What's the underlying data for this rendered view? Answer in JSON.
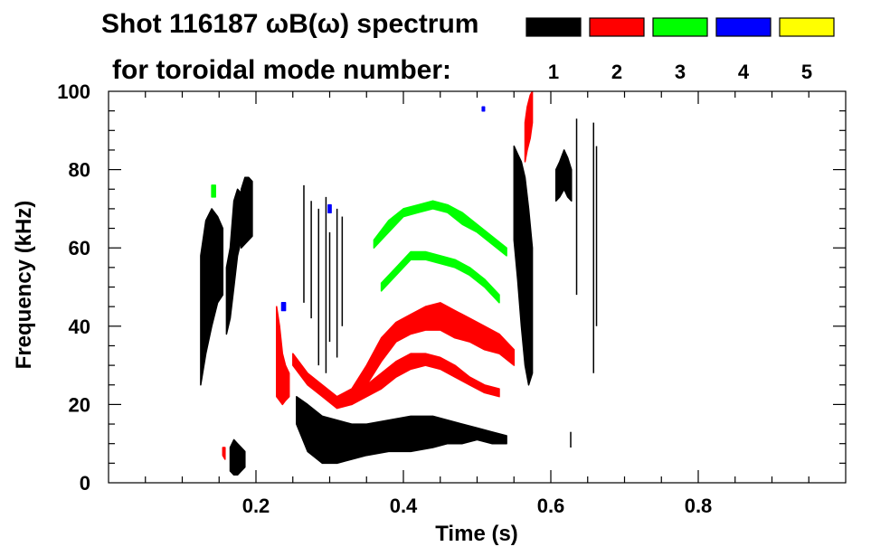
{
  "chart_data": {
    "type": "scatter",
    "title_line1": "Shot 116187 ωB(ω) spectrum",
    "title_line2": "for toroidal mode number:",
    "xlabel": "Time (s)",
    "ylabel": "Frequency (kHz)",
    "xlim": [
      0.0,
      1.0
    ],
    "ylim": [
      0,
      100
    ],
    "x_ticks": [
      0.2,
      0.4,
      0.6,
      0.8
    ],
    "x_tick_labels": [
      "0.2",
      "0.4",
      "0.6",
      "0.8"
    ],
    "y_ticks": [
      0,
      20,
      40,
      60,
      80,
      100
    ],
    "y_tick_labels": [
      "0",
      "20",
      "40",
      "60",
      "80",
      "100"
    ],
    "grid": false,
    "legend_position": "top-right",
    "legend": [
      {
        "label": "1",
        "color": "#000000"
      },
      {
        "label": "2",
        "color": "#ff0000"
      },
      {
        "label": "3",
        "color": "#00ff00"
      },
      {
        "label": "4",
        "color": "#0000ff"
      },
      {
        "label": "5",
        "color": "#ffff00"
      }
    ],
    "series": [
      {
        "mode": "1",
        "color": "#000000",
        "bands": [
          {
            "x": [
              0.125,
              0.132,
              0.14,
              0.148,
              0.155
            ],
            "low": [
              25,
              33,
              40,
              46,
              48
            ],
            "high": [
              58,
              67,
              70,
              68,
              65
            ]
          },
          {
            "x": [
              0.16,
              0.165,
              0.17,
              0.175,
              0.18
            ],
            "low": [
              38,
              42,
              50,
              58,
              62
            ],
            "high": [
              55,
              60,
              72,
              75,
              74
            ]
          },
          {
            "x": [
              0.18,
              0.185,
              0.19,
              0.195
            ],
            "low": [
              60,
              61,
              62,
              63
            ],
            "high": [
              75,
              78,
              78,
              77
            ]
          },
          {
            "x": [
              0.165,
              0.17,
              0.175,
              0.18,
              0.185
            ],
            "low": [
              3,
              2,
              2,
              3,
              4
            ],
            "high": [
              9,
              11,
              10,
              9,
              8
            ]
          },
          {
            "x": [
              0.255,
              0.27,
              0.29,
              0.31,
              0.33,
              0.35,
              0.38,
              0.41,
              0.44,
              0.46,
              0.48,
              0.5,
              0.52,
              0.54
            ],
            "low": [
              15,
              8,
              5,
              5,
              6,
              7,
              8,
              8,
              9,
              10,
              10,
              11,
              10,
              10
            ],
            "high": [
              22,
              20,
              17,
              16,
              15,
              15,
              16,
              17,
              17,
              16,
              15,
              14,
              13,
              12
            ]
          },
          {
            "x": [
              0.55,
              0.555,
              0.56,
              0.565,
              0.57,
              0.575
            ],
            "low": [
              62,
              52,
              40,
              30,
              25,
              28
            ],
            "high": [
              86,
              84,
              82,
              78,
              70,
              60
            ]
          },
          {
            "x": [
              0.607,
              0.612,
              0.618,
              0.623,
              0.628
            ],
            "low": [
              72,
              73,
              75,
              73,
              72
            ],
            "high": [
              80,
              82,
              85,
              83,
              80
            ]
          }
        ],
        "streaks": [
          {
            "x": 0.265,
            "y": [
              46,
              76
            ]
          },
          {
            "x": 0.275,
            "y": [
              42,
              72
            ]
          },
          {
            "x": 0.285,
            "y": [
              30,
              70
            ]
          },
          {
            "x": 0.295,
            "y": [
              28,
              73
            ]
          },
          {
            "x": 0.3,
            "y": [
              36,
              64
            ]
          },
          {
            "x": 0.31,
            "y": [
              32,
              70
            ]
          },
          {
            "x": 0.317,
            "y": [
              40,
              68
            ]
          },
          {
            "x": 0.635,
            "y": [
              48,
              93
            ]
          },
          {
            "x": 0.658,
            "y": [
              28,
              92
            ]
          },
          {
            "x": 0.662,
            "y": [
              40,
              86
            ]
          },
          {
            "x": 0.627,
            "y": [
              9,
              13
            ]
          }
        ]
      },
      {
        "mode": "2",
        "color": "#ff0000",
        "bands": [
          {
            "x": [
              0.228,
              0.232,
              0.236,
              0.24,
              0.245
            ],
            "low": [
              22,
              21,
              20,
              21,
              22
            ],
            "high": [
              45,
              40,
              33,
              30,
              28
            ]
          },
          {
            "x": [
              0.25,
              0.27,
              0.29,
              0.31,
              0.33,
              0.35,
              0.37,
              0.39,
              0.41,
              0.43,
              0.45,
              0.47,
              0.49,
              0.51,
              0.53,
              0.55
            ],
            "low": [
              30,
              25,
              22,
              19,
              20,
              25,
              31,
              36,
              38,
              39,
              39,
              37,
              36,
              34,
              33,
              30
            ],
            "high": [
              33,
              28,
              25,
              22,
              24,
              30,
              37,
              41,
              43,
              45,
              46,
              44,
              42,
              40,
              38,
              34
            ]
          },
          {
            "x": [
              0.33,
              0.35,
              0.37,
              0.39,
              0.41,
              0.43,
              0.45,
              0.47,
              0.49,
              0.51,
              0.53
            ],
            "low": [
              20,
              22,
              24,
              27,
              29,
              30,
              29,
              27,
              25,
              23,
              22
            ],
            "high": [
              22,
              25,
              28,
              31,
              33,
              33,
              32,
              30,
              27,
              25,
              24
            ]
          },
          {
            "x": [
              0.565,
              0.568,
              0.572,
              0.575
            ],
            "low": [
              82,
              85,
              88,
              92
            ],
            "high": [
              92,
              96,
              99,
              100
            ]
          },
          {
            "x": [
              0.155,
              0.158
            ],
            "low": [
              7,
              6
            ],
            "high": [
              9,
              9
            ]
          }
        ],
        "streaks": []
      },
      {
        "mode": "3",
        "color": "#00ff00",
        "bands": [
          {
            "x": [
              0.36,
              0.38,
              0.4,
              0.42,
              0.44,
              0.46,
              0.48,
              0.5,
              0.52,
              0.54
            ],
            "low": [
              60,
              64,
              68,
              69,
              70,
              69,
              66,
              64,
              61,
              58
            ],
            "high": [
              62,
              67,
              70,
              71,
              72,
              71,
              69,
              66,
              63,
              60
            ]
          },
          {
            "x": [
              0.37,
              0.39,
              0.41,
              0.43,
              0.45,
              0.47,
              0.49,
              0.51,
              0.53
            ],
            "low": [
              49,
              53,
              57,
              57,
              56,
              55,
              53,
              50,
              46
            ],
            "high": [
              51,
              55,
              59,
              59,
              58,
              57,
              55,
              52,
              48
            ]
          },
          {
            "x": [
              0.14,
              0.145
            ],
            "low": [
              73,
              73
            ],
            "high": [
              76,
              76
            ]
          }
        ],
        "streaks": []
      },
      {
        "mode": "4",
        "color": "#0000ff",
        "bands": [
          {
            "x": [
              0.235,
              0.24
            ],
            "low": [
              44,
              44
            ],
            "high": [
              46,
              46
            ]
          },
          {
            "x": [
              0.298,
              0.302
            ],
            "low": [
              69,
              69
            ],
            "high": [
              71,
              71
            ]
          },
          {
            "x": [
              0.507,
              0.51
            ],
            "low": [
              95,
              95
            ],
            "high": [
              96,
              96
            ]
          }
        ],
        "streaks": []
      },
      {
        "mode": "5",
        "color": "#ffff00",
        "bands": [],
        "streaks": []
      }
    ]
  }
}
